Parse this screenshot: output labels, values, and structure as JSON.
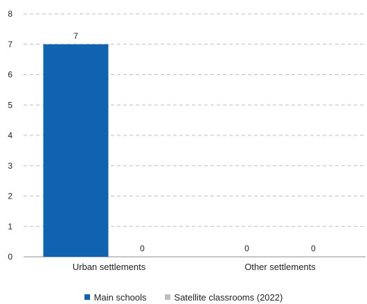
{
  "chart_data": {
    "type": "bar",
    "categories": [
      "Urban settlements",
      "Other settlements"
    ],
    "series": [
      {
        "name": "Main schools",
        "values": [
          7,
          0
        ],
        "color": "#0f63b0"
      },
      {
        "name": "Satellite classrooms (2022)",
        "values": [
          0,
          0
        ],
        "color": "#bfbfbf"
      }
    ],
    "ylim": [
      0,
      8
    ],
    "yticks": [
      0,
      1,
      2,
      3,
      4,
      5,
      6,
      7,
      8
    ],
    "grid": true,
    "legend_position": "bottom"
  }
}
